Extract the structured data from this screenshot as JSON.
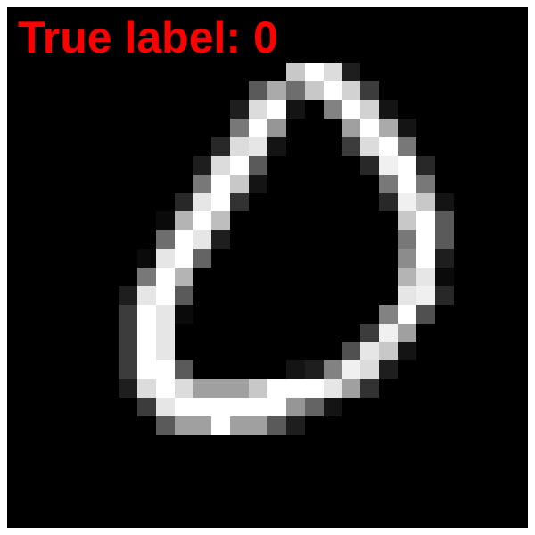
{
  "label": {
    "text": "True label: 0",
    "color": "#ff0000"
  },
  "image": {
    "background": "#000000",
    "grid_size": 28,
    "pixel_values": [
      [
        0,
        0,
        0,
        0,
        0,
        0,
        0,
        0,
        0,
        0,
        0,
        0,
        0,
        0,
        0,
        0,
        0,
        0,
        0,
        0,
        0,
        0,
        0,
        0,
        0,
        0,
        0,
        0
      ],
      [
        0,
        0,
        0,
        0,
        0,
        0,
        0,
        0,
        0,
        0,
        0,
        0,
        0,
        0,
        0,
        0,
        0,
        0,
        0,
        0,
        0,
        0,
        0,
        0,
        0,
        0,
        0,
        0
      ],
      [
        0,
        0,
        0,
        0,
        0,
        0,
        0,
        0,
        0,
        0,
        0,
        0,
        0,
        0,
        0,
        0,
        0,
        0,
        0,
        0,
        0,
        0,
        0,
        0,
        0,
        0,
        0,
        0
      ],
      [
        0,
        0,
        0,
        0,
        0,
        0,
        0,
        0,
        0,
        0,
        0,
        0,
        0,
        0,
        0,
        200,
        255,
        220,
        30,
        0,
        0,
        0,
        0,
        0,
        0,
        0,
        0,
        0
      ],
      [
        0,
        0,
        0,
        0,
        0,
        0,
        0,
        0,
        0,
        0,
        0,
        0,
        0,
        90,
        170,
        110,
        200,
        255,
        210,
        60,
        0,
        0,
        0,
        0,
        0,
        0,
        0,
        0
      ],
      [
        0,
        0,
        0,
        0,
        0,
        0,
        0,
        0,
        0,
        0,
        0,
        0,
        30,
        220,
        255,
        20,
        0,
        130,
        255,
        210,
        20,
        0,
        0,
        0,
        0,
        0,
        0,
        0
      ],
      [
        0,
        0,
        0,
        0,
        0,
        0,
        0,
        0,
        0,
        0,
        0,
        0,
        120,
        255,
        150,
        0,
        0,
        0,
        160,
        255,
        170,
        20,
        0,
        0,
        0,
        0,
        0,
        0
      ],
      [
        0,
        0,
        0,
        0,
        0,
        0,
        0,
        0,
        0,
        0,
        0,
        40,
        220,
        230,
        20,
        0,
        0,
        0,
        60,
        220,
        255,
        120,
        0,
        0,
        0,
        0,
        0,
        0
      ],
      [
        0,
        0,
        0,
        0,
        0,
        0,
        0,
        0,
        0,
        0,
        30,
        220,
        255,
        90,
        0,
        0,
        0,
        0,
        0,
        40,
        240,
        255,
        40,
        0,
        0,
        0,
        0,
        0
      ],
      [
        0,
        0,
        0,
        0,
        0,
        0,
        0,
        0,
        0,
        0,
        120,
        255,
        200,
        20,
        0,
        0,
        0,
        0,
        0,
        0,
        120,
        255,
        120,
        0,
        0,
        0,
        0,
        0
      ],
      [
        0,
        0,
        0,
        0,
        0,
        0,
        0,
        0,
        0,
        40,
        230,
        255,
        50,
        0,
        0,
        0,
        0,
        0,
        0,
        0,
        40,
        240,
        200,
        20,
        0,
        0,
        0,
        0
      ],
      [
        0,
        0,
        0,
        0,
        0,
        0,
        0,
        0,
        10,
        180,
        255,
        190,
        0,
        0,
        0,
        0,
        0,
        0,
        0,
        0,
        0,
        200,
        255,
        90,
        0,
        0,
        0,
        0
      ],
      [
        0,
        0,
        0,
        0,
        0,
        0,
        0,
        0,
        110,
        255,
        230,
        30,
        0,
        0,
        0,
        0,
        0,
        0,
        0,
        0,
        0,
        120,
        255,
        90,
        0,
        0,
        0,
        0
      ],
      [
        0,
        0,
        0,
        0,
        0,
        0,
        0,
        10,
        230,
        255,
        100,
        0,
        0,
        0,
        0,
        0,
        0,
        0,
        0,
        0,
        0,
        140,
        255,
        30,
        0,
        0,
        0,
        0
      ],
      [
        0,
        0,
        0,
        0,
        0,
        0,
        0,
        120,
        255,
        180,
        0,
        0,
        0,
        0,
        0,
        0,
        0,
        0,
        0,
        0,
        0,
        180,
        230,
        10,
        0,
        0,
        0,
        0
      ],
      [
        0,
        0,
        0,
        0,
        0,
        0,
        30,
        230,
        255,
        90,
        0,
        0,
        0,
        0,
        0,
        0,
        0,
        0,
        0,
        0,
        0,
        230,
        240,
        40,
        0,
        0,
        0,
        0
      ],
      [
        0,
        0,
        0,
        0,
        0,
        0,
        60,
        255,
        230,
        10,
        0,
        0,
        0,
        0,
        0,
        0,
        0,
        0,
        0,
        0,
        130,
        255,
        80,
        0,
        0,
        0,
        0,
        0
      ],
      [
        0,
        0,
        0,
        0,
        0,
        0,
        60,
        255,
        230,
        0,
        0,
        0,
        0,
        0,
        0,
        0,
        0,
        0,
        0,
        60,
        240,
        160,
        0,
        0,
        0,
        0,
        0,
        0
      ],
      [
        0,
        0,
        0,
        0,
        0,
        0,
        60,
        255,
        230,
        0,
        0,
        0,
        0,
        0,
        0,
        0,
        0,
        0,
        80,
        230,
        200,
        20,
        0,
        0,
        0,
        0,
        0,
        0
      ],
      [
        0,
        0,
        0,
        0,
        0,
        0,
        60,
        255,
        255,
        90,
        0,
        0,
        0,
        0,
        0,
        20,
        30,
        130,
        240,
        220,
        30,
        0,
        0,
        0,
        0,
        0,
        0,
        0
      ],
      [
        0,
        0,
        0,
        0,
        0,
        0,
        30,
        220,
        255,
        220,
        160,
        160,
        160,
        200,
        255,
        255,
        255,
        230,
        160,
        50,
        0,
        0,
        0,
        0,
        0,
        0,
        0,
        0
      ],
      [
        0,
        0,
        0,
        0,
        0,
        0,
        0,
        60,
        230,
        255,
        255,
        255,
        255,
        255,
        255,
        150,
        100,
        20,
        0,
        0,
        0,
        0,
        0,
        0,
        0,
        0,
        0,
        0
      ],
      [
        0,
        0,
        0,
        0,
        0,
        0,
        0,
        0,
        90,
        160,
        160,
        255,
        160,
        160,
        90,
        30,
        0,
        0,
        0,
        0,
        0,
        0,
        0,
        0,
        0,
        0,
        0,
        0
      ],
      [
        0,
        0,
        0,
        0,
        0,
        0,
        0,
        0,
        0,
        0,
        0,
        0,
        0,
        0,
        0,
        0,
        0,
        0,
        0,
        0,
        0,
        0,
        0,
        0,
        0,
        0,
        0,
        0
      ],
      [
        0,
        0,
        0,
        0,
        0,
        0,
        0,
        0,
        0,
        0,
        0,
        0,
        0,
        0,
        0,
        0,
        0,
        0,
        0,
        0,
        0,
        0,
        0,
        0,
        0,
        0,
        0,
        0
      ],
      [
        0,
        0,
        0,
        0,
        0,
        0,
        0,
        0,
        0,
        0,
        0,
        0,
        0,
        0,
        0,
        0,
        0,
        0,
        0,
        0,
        0,
        0,
        0,
        0,
        0,
        0,
        0,
        0
      ],
      [
        0,
        0,
        0,
        0,
        0,
        0,
        0,
        0,
        0,
        0,
        0,
        0,
        0,
        0,
        0,
        0,
        0,
        0,
        0,
        0,
        0,
        0,
        0,
        0,
        0,
        0,
        0,
        0
      ],
      [
        0,
        0,
        0,
        0,
        0,
        0,
        0,
        0,
        0,
        0,
        0,
        0,
        0,
        0,
        0,
        0,
        0,
        0,
        0,
        0,
        0,
        0,
        0,
        0,
        0,
        0,
        0,
        0
      ]
    ]
  }
}
